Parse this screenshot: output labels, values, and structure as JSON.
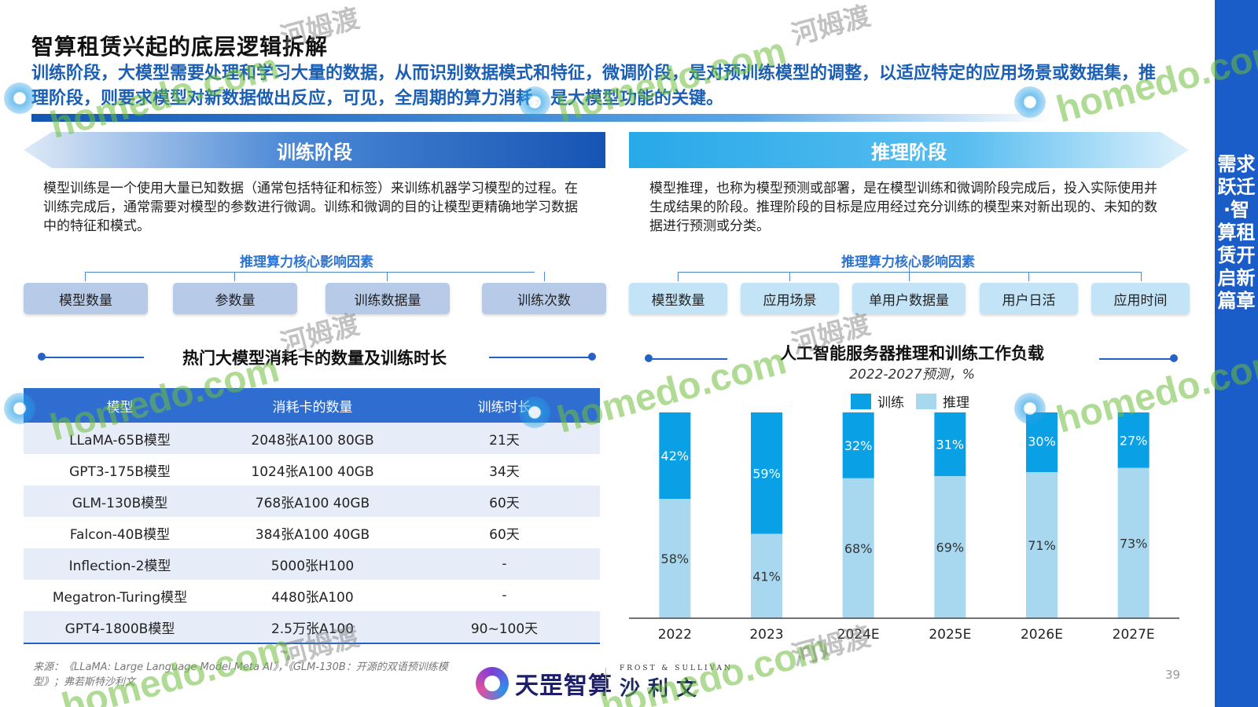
{
  "page": {
    "title": "智算租赁兴起的底层逻辑拆解",
    "summary": "训练阶段，大模型需要处理和学习大量的数据，从而识别数据模式和特征，微调阶段，是对预训练模型的调整，以适应特定的应用场景或数据集，推理阶段，则要求模型对新数据做出反应，可见，全周期的算力消耗，是大模型功能的关键。",
    "side_label": "需求跃迁·智算租赁开启新篇章",
    "page_number": "39"
  },
  "training": {
    "banner": "训练阶段",
    "description": "模型训练是一个使用大量已知数据（通常包括特征和标签）来训练机器学习模型的过程。在训练完成后，通常需要对模型的参数进行微调。训练和微调的目的让模型更精确地学习数据中的特征和模式。",
    "factor_title": "推理算力核心影响因素",
    "factors": [
      "模型数量",
      "参数量",
      "训练数据量",
      "训练次数"
    ]
  },
  "inference": {
    "banner": "推理阶段",
    "description": "模型推理，也称为模型预测或部署，是在模型训练和微调阶段完成后，投入实际使用并生成结果的阶段。推理阶段的目标是应用经过充分训练的模型来对新出现的、未知的数据进行预测或分类。",
    "factor_title": "推理算力核心影响因素",
    "factors": [
      "模型数量",
      "应用场景",
      "单用户数据量",
      "用户日活",
      "应用时间"
    ]
  },
  "table": {
    "title": "热门大模型消耗卡的数量及训练时长",
    "headers": [
      "模型",
      "消耗卡的数量",
      "训练时长"
    ],
    "rows": [
      [
        "LLaMA-65B模型",
        "2048张A100 80GB",
        "21天"
      ],
      [
        "GPT3-175B模型",
        "1024张A100 40GB",
        "34天"
      ],
      [
        "GLM-130B模型",
        "768张A100 40GB",
        "60天"
      ],
      [
        "Falcon-40B模型",
        "384张A100 40GB",
        "60天"
      ],
      [
        "Inflection-2模型",
        "5000张H100",
        "-"
      ],
      [
        "Megatron-Turing模型",
        "4480张A100",
        "-"
      ],
      [
        "GPT4-1800B模型",
        "2.5万张A100",
        "90~100天"
      ]
    ]
  },
  "chart_data": {
    "type": "bar",
    "stacked": true,
    "title": "人工智能服务器推理和训练工作负载",
    "subtitle": "2022-2027预测，%",
    "categories": [
      "2022",
      "2023",
      "2024E",
      "2025E",
      "2026E",
      "2027E"
    ],
    "series": [
      {
        "name": "训练",
        "color": "#0aa0e6",
        "values": [
          42,
          59,
          32,
          31,
          30,
          27
        ]
      },
      {
        "name": "推理",
        "color": "#a8d8f0",
        "values": [
          58,
          41,
          68,
          69,
          71,
          73
        ]
      }
    ],
    "value_suffix": "%",
    "ylim": [
      0,
      100
    ],
    "legend_position": "top",
    "grid": false
  },
  "footer": {
    "source": "来源：《LLaMA: Large Language Model Meta AI》，《GLM-130B：开源的双语预训练模型》；弗若斯特沙利文",
    "logo1_text": "天罡智算",
    "logo2_small": "FROST & SULLIVAN",
    "logo2_big": "沙利文"
  },
  "watermark": {
    "latin": "homedo.com",
    "cn": "河姆渡"
  }
}
